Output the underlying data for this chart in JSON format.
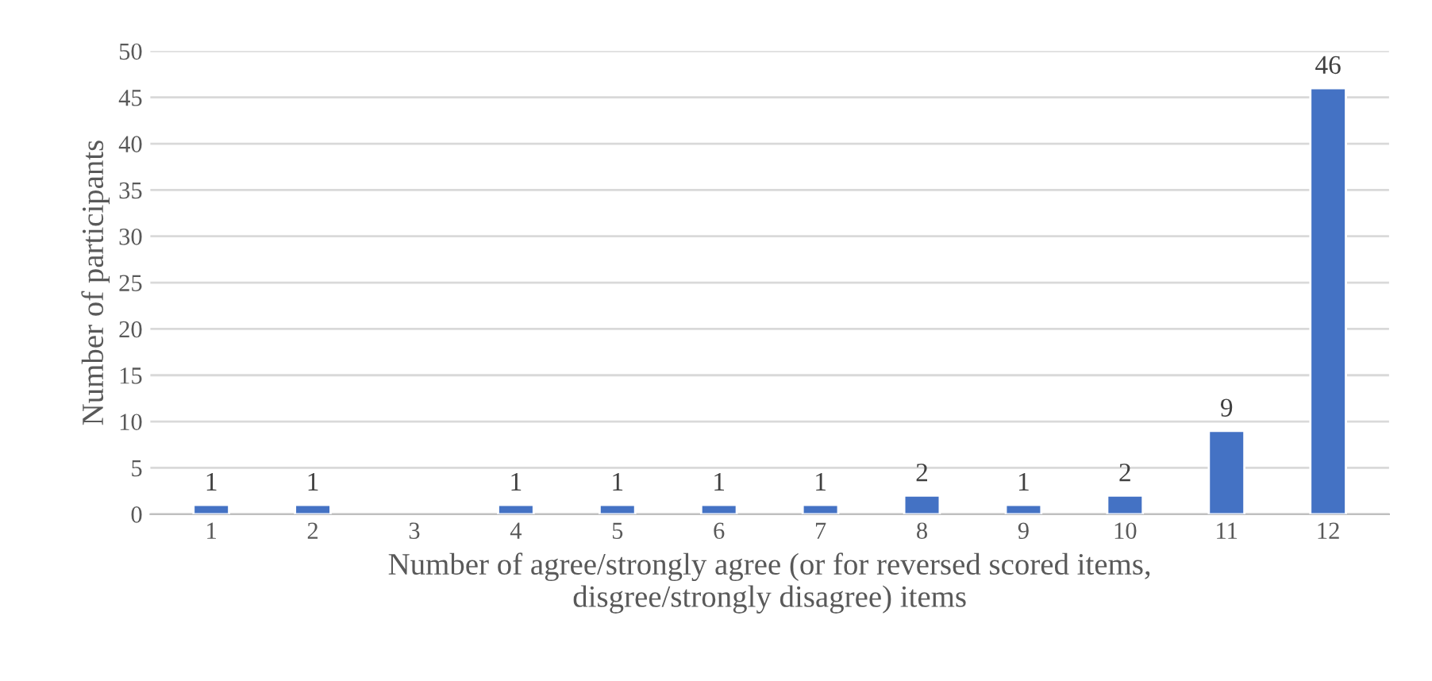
{
  "chart_data": {
    "type": "bar",
    "xlabel": "Number of agree/strongly agree (or for reversed scored items,\ndisgree/strongly disagree) items",
    "ylabel": "Number of participants",
    "categories": [
      "1",
      "2",
      "3",
      "4",
      "5",
      "6",
      "7",
      "8",
      "9",
      "10",
      "11",
      "12"
    ],
    "values": [
      1,
      1,
      null,
      1,
      1,
      1,
      1,
      2,
      1,
      2,
      9,
      46
    ],
    "color": "#4472c4",
    "ylim": [
      0,
      50
    ],
    "yticks": [
      0,
      5,
      10,
      15,
      20,
      25,
      30,
      35,
      40,
      45,
      50
    ],
    "grid": "y",
    "data_labels": true
  }
}
